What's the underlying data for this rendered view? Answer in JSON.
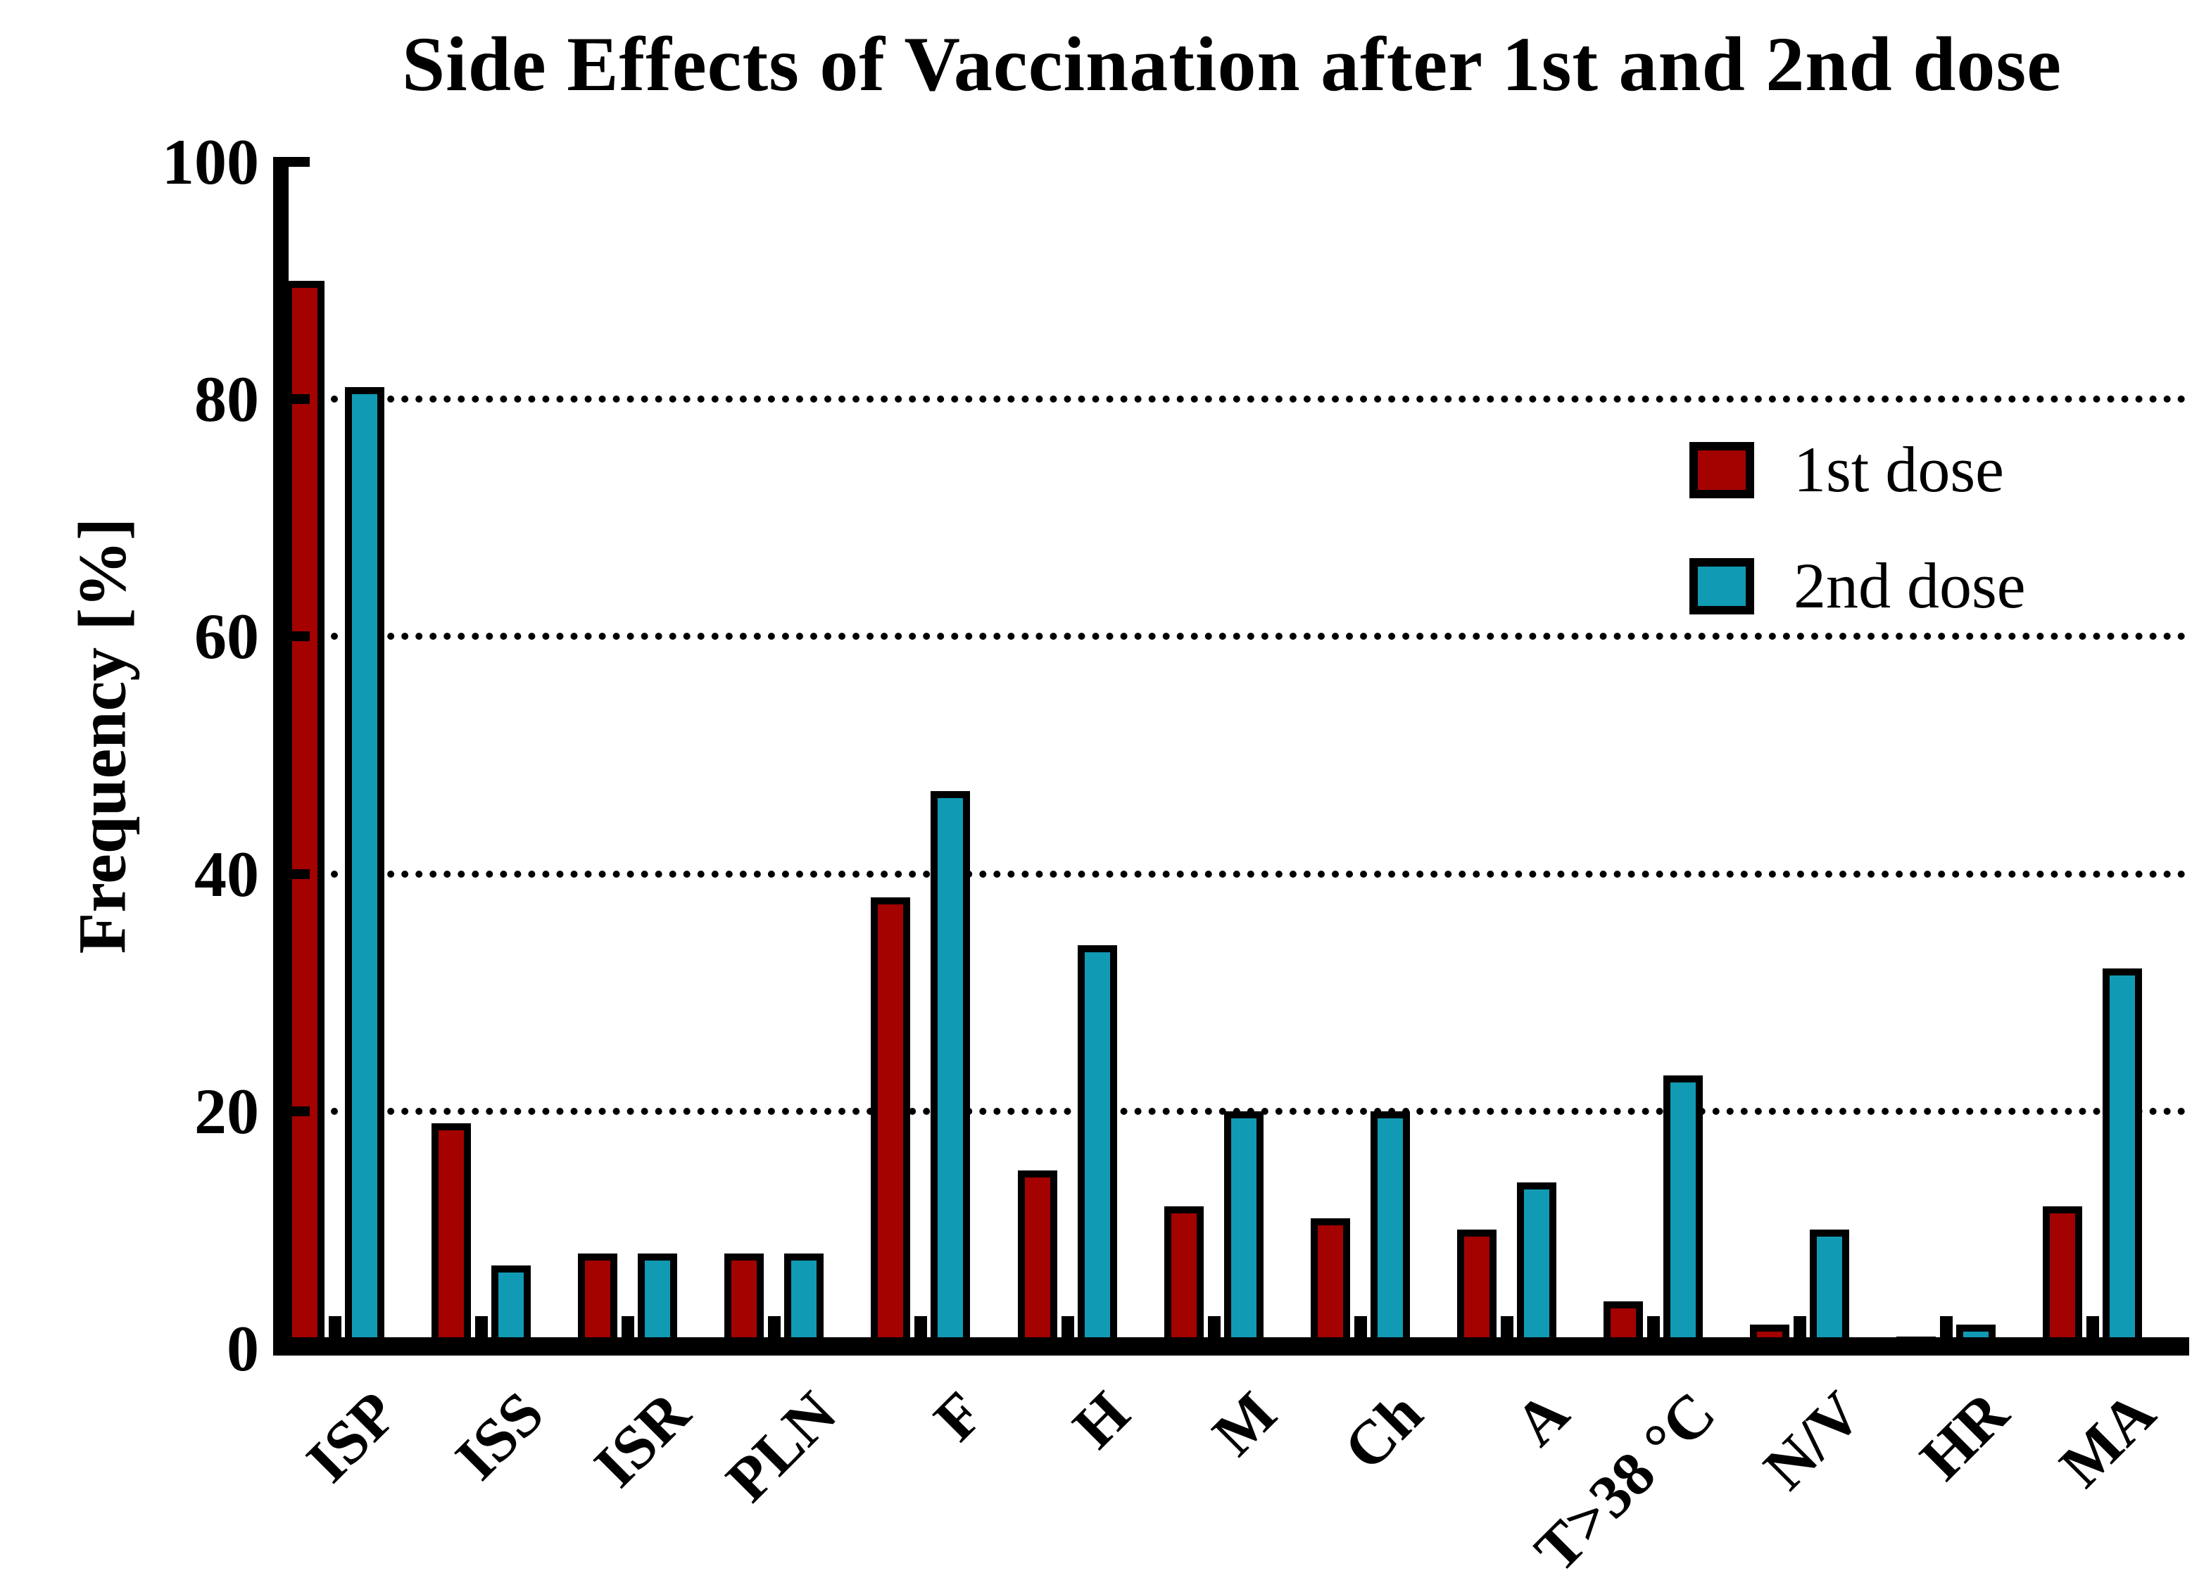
{
  "chart_data": {
    "type": "bar",
    "title": "Side Effects of Vaccination after 1st and 2nd dose",
    "xlabel": "",
    "ylabel": "Frequency [%]",
    "categories": [
      "ISP",
      "ISS",
      "ISR",
      "PLN",
      "F",
      "H",
      "M",
      "Ch",
      "A",
      "T>38 °C",
      "N/V",
      "HR",
      "MA"
    ],
    "series": [
      {
        "name": "1st dose",
        "color": "#A30200",
        "values": [
          90,
          19,
          8,
          8,
          38,
          15,
          12,
          11,
          10,
          4,
          2,
          1,
          12
        ]
      },
      {
        "name": "2nd dose",
        "color": "#119AB3",
        "values": [
          81,
          7,
          8,
          8,
          47,
          34,
          20,
          20,
          14,
          23,
          10,
          2,
          32
        ]
      }
    ],
    "ylim": [
      0,
      100
    ],
    "yticks": [
      0,
      20,
      40,
      60,
      80,
      100
    ],
    "gridlines": [
      20,
      40,
      60,
      80
    ],
    "grid_style": "dotted horizontal lines",
    "legend_position": "upper right",
    "bar_outline_color": "#000000",
    "axis_color": "#000000",
    "background_color": "#ffffff"
  }
}
